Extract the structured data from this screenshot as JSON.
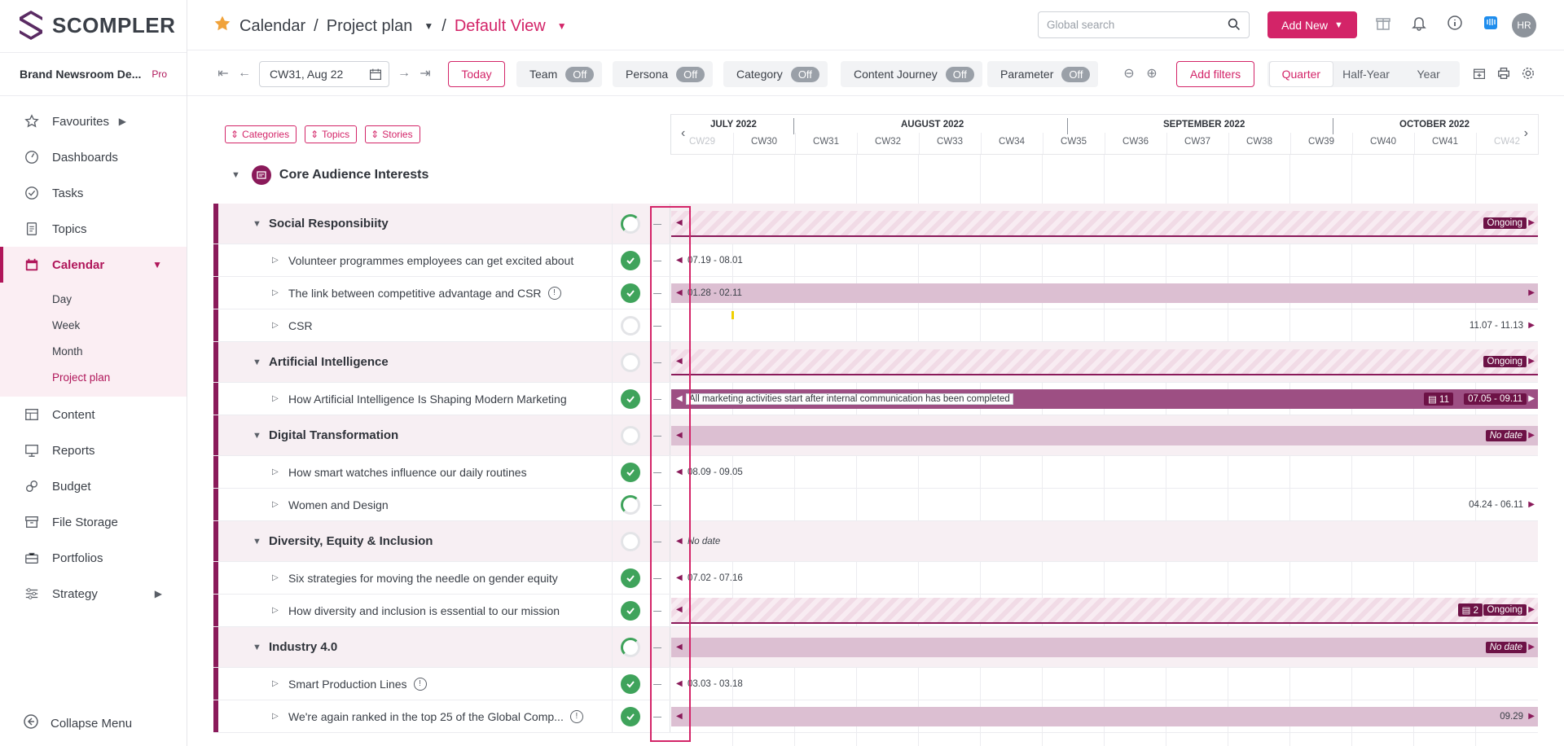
{
  "app": {
    "logo_text": "SCOMPLER",
    "brand_name": "Brand Newsroom De...",
    "plan": "Pro"
  },
  "sidebar": {
    "items": [
      {
        "label": "Favourites",
        "icon": "star-icon",
        "arrow": "▶"
      },
      {
        "label": "Dashboards",
        "icon": "gauge-icon"
      },
      {
        "label": "Tasks",
        "icon": "check-circle-icon"
      },
      {
        "label": "Topics",
        "icon": "document-icon"
      },
      {
        "label": "Calendar",
        "icon": "calendar-icon",
        "arrow": "▼",
        "active": true
      },
      {
        "label": "Content",
        "icon": "table-icon"
      },
      {
        "label": "Reports",
        "icon": "presentation-icon"
      },
      {
        "label": "Budget",
        "icon": "coins-icon"
      },
      {
        "label": "File Storage",
        "icon": "archive-icon"
      },
      {
        "label": "Portfolios",
        "icon": "briefcase-icon"
      },
      {
        "label": "Strategy",
        "icon": "sliders-icon",
        "arrow": "▶"
      }
    ],
    "calendar_sub": [
      "Day",
      "Week",
      "Month",
      "Project plan"
    ],
    "collapse_label": "Collapse Menu"
  },
  "header": {
    "crumb_1": "Calendar",
    "crumb_2": "Project plan",
    "view": "Default View",
    "search_placeholder": "Global search",
    "add_new": "Add New",
    "avatar": "HR"
  },
  "toolbar": {
    "week": "CW31, Aug 22",
    "today": "Today",
    "toggles": [
      {
        "label": "Team",
        "state": "Off"
      },
      {
        "label": "Persona",
        "state": "Off"
      },
      {
        "label": "Category",
        "state": "Off"
      },
      {
        "label": "Content Journey",
        "state": "Off"
      },
      {
        "label": "Parameter",
        "state": "Off"
      }
    ],
    "add_filters": "Add filters",
    "ranges": [
      "Quarter",
      "Half-Year",
      "Year"
    ]
  },
  "panel": {
    "chips": [
      "Categories",
      "Topics",
      "Stories"
    ],
    "group": "Core Audience Interests"
  },
  "timeline": {
    "months": [
      "JULY 2022",
      "AUGUST 2022",
      "SEPTEMBER 2022",
      "OCTOBER 2022"
    ],
    "weeks": [
      "CW29",
      "CW30",
      "CW31",
      "CW32",
      "CW33",
      "CW34",
      "CW35",
      "CW36",
      "CW37",
      "CW38",
      "CW39",
      "CW40",
      "CW41",
      "CW42"
    ]
  },
  "rows": [
    {
      "type": "cat",
      "label": "Social Responsibiity",
      "status": "part",
      "gantt": "hatch",
      "tag": "Ongoing"
    },
    {
      "type": "item",
      "label": "Volunteer programmes employees can get excited about",
      "status": "done",
      "text_left": "07.19 - 08.01"
    },
    {
      "type": "item",
      "label": "The link between competitive advantage and CSR",
      "info": "!",
      "status": "done",
      "gantt": "solid",
      "text_left": "01.28 - 02.11"
    },
    {
      "type": "item",
      "label": "CSR",
      "status": "none",
      "text_right": "11.07 - 11.13"
    },
    {
      "type": "cat",
      "label": "Artificial Intelligence",
      "status": "none",
      "gantt": "hatch",
      "tag": "Ongoing"
    },
    {
      "type": "item",
      "label": "How Artificial Intelligence Is Shaping Modern Marketing",
      "status": "done",
      "gantt": "dark",
      "note": "All marketing activities start after internal communication has been completed",
      "tag": "07.05 - 09.11",
      "tag2": "11"
    },
    {
      "type": "cat",
      "label": "Digital Transformation",
      "status": "none",
      "gantt": "solid",
      "tag": "No date"
    },
    {
      "type": "item",
      "label": "How smart watches influence our daily routines",
      "status": "done",
      "text_left": "08.09 - 09.05"
    },
    {
      "type": "item",
      "label": "Women and Design",
      "status": "part",
      "text_right": "04.24 - 06.11"
    },
    {
      "type": "cat",
      "label": "Diversity, Equity & Inclusion",
      "status": "none",
      "text_left": "No date"
    },
    {
      "type": "item",
      "label": "Six strategies for moving the needle on gender equity",
      "status": "done",
      "text_left": "07.02 - 07.16"
    },
    {
      "type": "item",
      "label": "How diversity and inclusion is essential to our mission",
      "status": "done",
      "gantt": "hatch",
      "tag": "Ongoing",
      "tag2": "2"
    },
    {
      "type": "cat",
      "label": "Industry 4.0",
      "status": "part",
      "gantt": "solid",
      "tag": "No date"
    },
    {
      "type": "item",
      "label": "Smart Production Lines",
      "info": "!",
      "status": "done",
      "text_left": "03.03 - 03.18"
    },
    {
      "type": "item",
      "label": "We're again ranked in the top 25 of the Global Comp...",
      "info": "!",
      "status": "done",
      "gantt": "solid",
      "text_right": "09.29"
    }
  ]
}
